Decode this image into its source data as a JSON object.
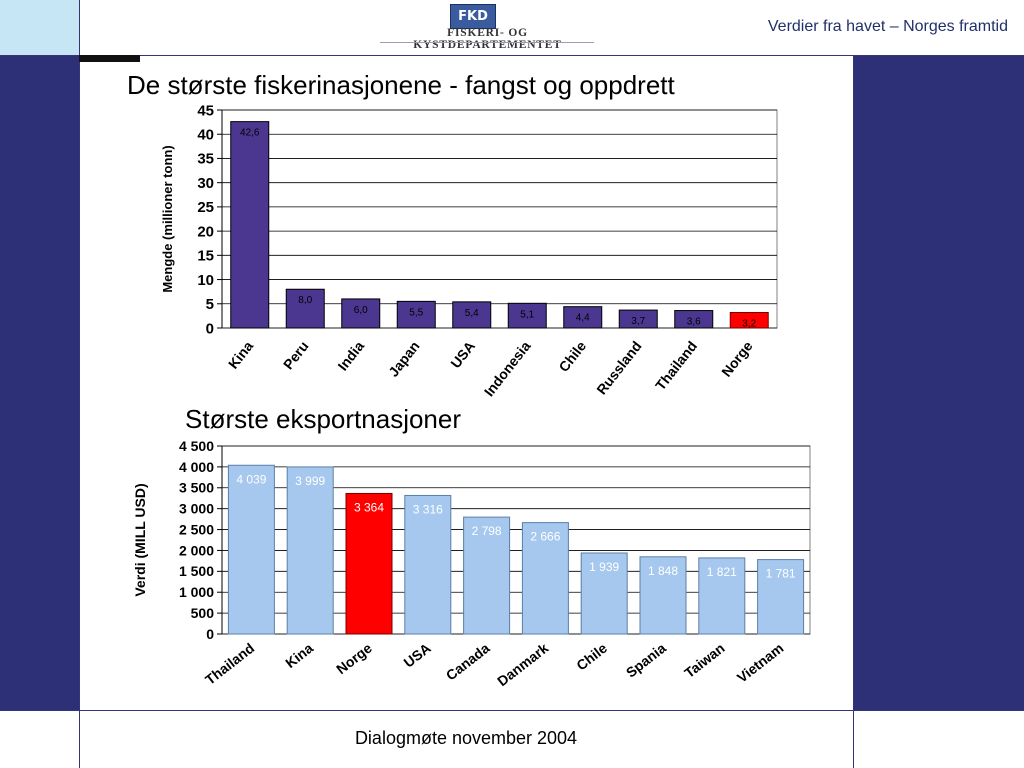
{
  "header": {
    "logo_abbrev": "FKD",
    "logo_name": "FISKERI- OG KYSTDEPARTEMENTET",
    "tagline": "Verdier fra havet – Norges framtid"
  },
  "colors": {
    "navy": "#2e3077",
    "light_blue": "#c6e6f5",
    "purple_bar": "#4b3790",
    "light_blue_bar": "#a6c8ee",
    "highlight_red": "#ff0000"
  },
  "footer": {
    "text": "Dialogmøte november 2004"
  },
  "chart_data": [
    {
      "type": "bar",
      "title": "De største fiskerinasjonene  - fangst og oppdrett",
      "xlabel": "",
      "ylabel": "Mengde (millioner tonn)",
      "ylim": [
        0,
        45
      ],
      "yticks": [
        0,
        5,
        10,
        15,
        20,
        25,
        30,
        35,
        40,
        45
      ],
      "ytick_labels": [
        "0",
        "5",
        "10",
        "15",
        "20",
        "25",
        "30",
        "35",
        "40",
        "45"
      ],
      "grid": true,
      "categories": [
        "Kina",
        "Peru",
        "India",
        "Japan",
        "USA",
        "Indonesia",
        "Chile",
        "Russland",
        "Thailand",
        "Norge"
      ],
      "values": [
        42.6,
        8.0,
        6.0,
        5.5,
        5.4,
        5.1,
        4.4,
        3.7,
        3.6,
        3.2
      ],
      "data_labels": [
        "42,6",
        "8,0",
        "6,0",
        "5,5",
        "5,4",
        "5,1",
        "4,4",
        "3,7",
        "3,6",
        "3,2"
      ],
      "bar_color": "#4b3790",
      "highlight": {
        "category": "Norge",
        "color": "#ff0000"
      }
    },
    {
      "type": "bar",
      "title": "Største eksportnasjoner",
      "xlabel": "",
      "ylabel": "Verdi (MILL USD)",
      "ylim": [
        0,
        4500
      ],
      "yticks": [
        0,
        500,
        1000,
        1500,
        2000,
        2500,
        3000,
        3500,
        4000,
        4500
      ],
      "ytick_labels": [
        "0",
        "500",
        "1 000",
        "1 500",
        "2 000",
        "2 500",
        "3 000",
        "3 500",
        "4 000",
        "4 500"
      ],
      "grid": true,
      "categories": [
        "Thailand",
        "Kina",
        "Norge",
        "USA",
        "Canada",
        "Danmark",
        "Chile",
        "Spania",
        "Taiwan",
        "Vietnam"
      ],
      "values": [
        4039,
        3999,
        3364,
        3316,
        2798,
        2666,
        1939,
        1848,
        1821,
        1781
      ],
      "data_labels": [
        "4 039",
        "3 999",
        "3 364",
        "3 316",
        "2 798",
        "2 666",
        "1 939",
        "1 848",
        "1 821",
        "1 781"
      ],
      "bar_color": "#a6c8ee",
      "highlight": {
        "category": "Norge",
        "color": "#ff0000"
      }
    }
  ]
}
